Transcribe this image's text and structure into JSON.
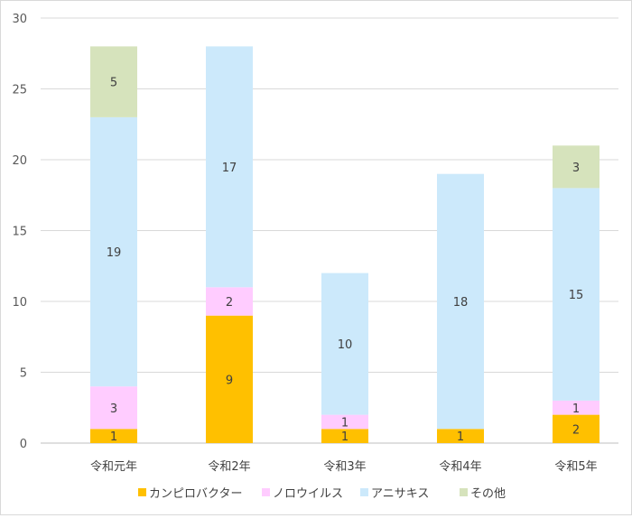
{
  "chart_data": {
    "type": "bar",
    "stacked": true,
    "categories": [
      "令和元年",
      "令和2年",
      "令和3年",
      "令和4年",
      "令和5年"
    ],
    "series": [
      {
        "name": "カンピロバクター",
        "color": "#ffc000",
        "values": [
          1,
          9,
          1,
          1,
          2
        ]
      },
      {
        "name": "ノロウイルス",
        "color": "#ffccff",
        "values": [
          3,
          2,
          1,
          0,
          1
        ]
      },
      {
        "name": "アニサキス",
        "color": "#cce9fb",
        "values": [
          19,
          17,
          10,
          18,
          15
        ]
      },
      {
        "name": "その他",
        "color": "#d6e3bc",
        "values": [
          5,
          0,
          0,
          0,
          3
        ]
      }
    ],
    "y_ticks": [
      0,
      5,
      10,
      15,
      20,
      25,
      30
    ],
    "ylim": [
      0,
      30
    ],
    "grid": true,
    "legend_position": "bottom"
  }
}
